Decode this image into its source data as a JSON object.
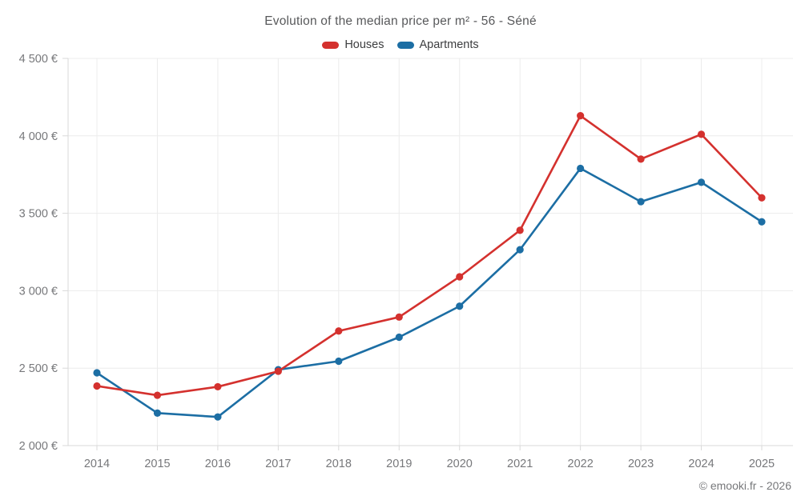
{
  "title": "Evolution of the median price per m² - 56 - Séné",
  "footer": "© emooki.fr - 2026",
  "legend": {
    "items": [
      {
        "label": "Houses",
        "color": "#d4312e"
      },
      {
        "label": "Apartments",
        "color": "#1c6ea4"
      }
    ]
  },
  "chart_data": {
    "type": "line",
    "title": "Evolution of the median price per m² - 56 - Séné",
    "x": [
      2014,
      2015,
      2016,
      2017,
      2018,
      2019,
      2020,
      2021,
      2022,
      2023,
      2024,
      2025
    ],
    "series": [
      {
        "name": "Houses",
        "color": "#d4312e",
        "values": [
          2385,
          2325,
          2380,
          2480,
          2740,
          2830,
          3090,
          3390,
          4130,
          3850,
          4010,
          3600
        ]
      },
      {
        "name": "Apartments",
        "color": "#1c6ea4",
        "values": [
          2470,
          2210,
          2185,
          2490,
          2545,
          2700,
          2900,
          3265,
          3790,
          3575,
          3700,
          3445
        ]
      }
    ],
    "ylim": [
      2000,
      4500
    ],
    "ytick_step": 500,
    "ytick_labels": [
      "2 000 €",
      "2 500 €",
      "3 000 €",
      "3 500 €",
      "4 000 €",
      "4 500 €"
    ],
    "xlabel": "",
    "ylabel": "",
    "grid": true,
    "legend_position": "top",
    "grid_color": "#ececec",
    "axis_color": "#d9d9d9",
    "tick_label_color": "#77787b"
  }
}
